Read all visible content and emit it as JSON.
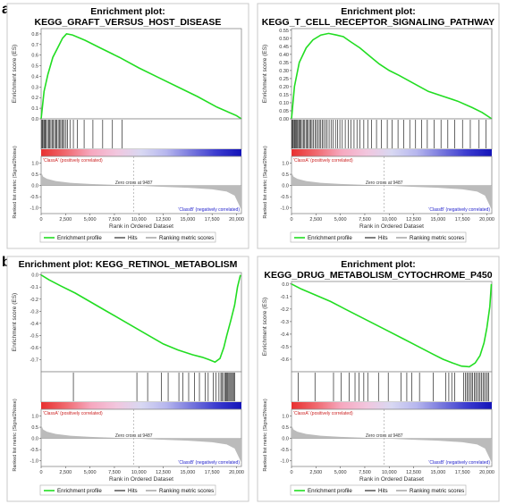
{
  "panel_labels": [
    "a",
    "b"
  ],
  "colors": {
    "es_curve": "#22dd22",
    "hits": "#000000",
    "metric_fill": "#bbbbbb",
    "classA_text": "#cc2222",
    "classB_text": "#2222cc",
    "heat_gradient": [
      "#e83030",
      "#f06a70",
      "#f6a8bf",
      "#f2c6de",
      "#d8d8f2",
      "#b6b6ee",
      "#7777dd",
      "#3b3bcf",
      "#1414b8"
    ]
  },
  "legend": {
    "enrichment_profile": "Enrichment profile",
    "hits": "Hits",
    "ranking_metric": "Ranking metric scores"
  },
  "labels": {
    "es_ylabel": "Enrichment score (ES)",
    "metric_ylabel": "Ranked list metric (Signal2Noise)",
    "xlabel": "Rank in Ordered Dataset",
    "classA": "'ClassA' (positively correlated)",
    "classB": "'ClassB' (negatively correlated)",
    "zero_cross": "Zero cross at 9487"
  },
  "chart_data": [
    {
      "type": "line",
      "panel": "a",
      "title": "Enrichment plot:\nKEGG_GRAFT_VERSUS_HOST_DISEASE",
      "xlim": [
        0,
        20500
      ],
      "xticks": [
        0,
        2500,
        5000,
        7500,
        10000,
        12500,
        15000,
        17500,
        20000
      ],
      "xtick_labels": [
        "0",
        "2,500",
        "5,000",
        "7,500",
        "10,000",
        "12,500",
        "15,000",
        "17,500",
        "20,000"
      ],
      "es_ylim": [
        0,
        0.85
      ],
      "es_yticks": [
        0.0,
        0.1,
        0.2,
        0.3,
        0.4,
        0.5,
        0.6,
        0.7,
        0.8
      ],
      "es_ytick_labels": [
        "0.0",
        "0.1",
        "0.2",
        "0.3",
        "0.4",
        "0.5",
        "0.6",
        "0.7",
        "0.8"
      ],
      "es_curve": {
        "x": [
          0,
          300,
          700,
          1200,
          1700,
          2200,
          2600,
          3200,
          4500,
          6000,
          8000,
          10000,
          12000,
          14000,
          16000,
          18000,
          20000,
          20500
        ],
        "y": [
          0.0,
          0.26,
          0.42,
          0.58,
          0.67,
          0.76,
          0.8,
          0.79,
          0.74,
          0.67,
          0.58,
          0.48,
          0.39,
          0.3,
          0.21,
          0.11,
          0.03,
          0.0
        ]
      },
      "hits": [
        80,
        150,
        260,
        350,
        420,
        520,
        650,
        780,
        880,
        1000,
        1120,
        1250,
        1380,
        1500,
        1620,
        1750,
        1880,
        2000,
        2120,
        2250,
        2380,
        2550,
        2700,
        2950,
        3300,
        3700,
        4400,
        5300,
        6300,
        7300,
        8300
      ],
      "zero_cross": 9487,
      "metric_ylim": [
        -1.25,
        1.3
      ],
      "metric_yticks": [
        1.0,
        0.5,
        0.0,
        -0.5,
        -1.0
      ],
      "metric_ytick_labels": [
        "1.0",
        "0.5",
        "0.0",
        "-0.5",
        "-1.0"
      ],
      "metric_curve": {
        "x": [
          0,
          200,
          600,
          1500,
          3000,
          5000,
          7500,
          9487,
          12000,
          15000,
          17500,
          19000,
          19800,
          20300,
          20500
        ],
        "y": [
          0.6,
          0.4,
          0.3,
          0.2,
          0.12,
          0.07,
          0.03,
          0.0,
          -0.05,
          -0.1,
          -0.17,
          -0.27,
          -0.45,
          -0.9,
          -1.1
        ]
      }
    },
    {
      "type": "line",
      "panel": "a",
      "title": "Enrichment plot:\nKEGG_T_CELL_RECEPTOR_SIGNALING_PATHWAY",
      "xlim": [
        0,
        20500
      ],
      "xticks": [
        0,
        2500,
        5000,
        7500,
        10000,
        12500,
        15000,
        17500,
        20000
      ],
      "xtick_labels": [
        "0",
        "2,500",
        "5,000",
        "7,500",
        "10,000",
        "12,500",
        "15,000",
        "17,500",
        "20,000"
      ],
      "es_ylim": [
        0,
        0.56
      ],
      "es_yticks": [
        0.0,
        0.05,
        0.1,
        0.15,
        0.2,
        0.25,
        0.3,
        0.35,
        0.4,
        0.45,
        0.5,
        0.55
      ],
      "es_ytick_labels": [
        "0.00",
        "0.05",
        "0.10",
        "0.15",
        "0.20",
        "0.25",
        "0.30",
        "0.35",
        "0.40",
        "0.45",
        "0.50",
        "0.55"
      ],
      "es_curve": {
        "x": [
          0,
          300,
          800,
          1500,
          2200,
          3000,
          3800,
          4600,
          5300,
          6000,
          7000,
          8000,
          9000,
          10000,
          11000,
          12500,
          14000,
          15500,
          17000,
          18500,
          19500,
          20500
        ],
        "y": [
          0.0,
          0.2,
          0.35,
          0.44,
          0.49,
          0.52,
          0.53,
          0.52,
          0.51,
          0.48,
          0.44,
          0.39,
          0.34,
          0.3,
          0.27,
          0.22,
          0.17,
          0.14,
          0.11,
          0.07,
          0.04,
          0.0
        ]
      },
      "hits": [
        60,
        130,
        200,
        300,
        380,
        470,
        560,
        650,
        760,
        860,
        980,
        1100,
        1220,
        1350,
        1480,
        1600,
        1720,
        1850,
        1980,
        2100,
        2250,
        2400,
        2550,
        2700,
        2850,
        3000,
        3150,
        3300,
        3480,
        3650,
        3850,
        4050,
        4250,
        4500,
        4700,
        4950,
        5200,
        5500,
        5800,
        6100,
        6400,
        6700,
        7000,
        7400,
        7800,
        8200,
        8700,
        9200,
        9800,
        10300,
        10900,
        11500,
        12100,
        12700,
        13300,
        13900,
        14600,
        15300,
        16000,
        16700,
        17500,
        18300,
        19200,
        19900
      ],
      "zero_cross": 9487,
      "metric_ylim": [
        -1.25,
        1.3
      ],
      "metric_yticks": [
        1.0,
        0.5,
        0.0,
        -0.5,
        -1.0
      ],
      "metric_ytick_labels": [
        "1.0",
        "0.5",
        "0.0",
        "-0.5",
        "-1.0"
      ],
      "metric_curve": {
        "x": [
          0,
          200,
          600,
          1500,
          3000,
          5000,
          7500,
          9487,
          12000,
          15000,
          17500,
          19000,
          19800,
          20300,
          20500
        ],
        "y": [
          0.6,
          0.4,
          0.3,
          0.2,
          0.12,
          0.07,
          0.03,
          0.0,
          -0.05,
          -0.1,
          -0.17,
          -0.27,
          -0.45,
          -0.9,
          -1.1
        ]
      }
    },
    {
      "type": "line",
      "panel": "b",
      "title": "Enrichment plot: KEGG_RETINOL_METABOLISM",
      "xlim": [
        0,
        20500
      ],
      "xticks": [
        0,
        2500,
        5000,
        7500,
        10000,
        12500,
        15000,
        17500,
        20000
      ],
      "xtick_labels": [
        "0",
        "2,500",
        "5,000",
        "7,500",
        "10,000",
        "12,500",
        "15,000",
        "17,500",
        "20,000"
      ],
      "es_ylim": [
        -0.8,
        0.02
      ],
      "es_yticks": [
        0.0,
        -0.1,
        -0.2,
        -0.3,
        -0.4,
        -0.5,
        -0.6,
        -0.7
      ],
      "es_ytick_labels": [
        "0.0",
        "-0.1",
        "-0.2",
        "-0.3",
        "-0.4",
        "-0.5",
        "-0.6",
        "-0.7"
      ],
      "es_curve": {
        "x": [
          0,
          800,
          2000,
          3500,
          5000,
          6500,
          8000,
          9500,
          11000,
          12500,
          14000,
          15500,
          16500,
          17200,
          17800,
          18300,
          18700,
          19000,
          19400,
          19800,
          20100,
          20400
        ],
        "y": [
          0.0,
          -0.04,
          -0.09,
          -0.15,
          -0.22,
          -0.29,
          -0.36,
          -0.43,
          -0.5,
          -0.57,
          -0.62,
          -0.66,
          -0.68,
          -0.7,
          -0.72,
          -0.69,
          -0.6,
          -0.5,
          -0.38,
          -0.25,
          -0.1,
          0.0
        ]
      },
      "hits": [
        3300,
        9800,
        10900,
        12300,
        13000,
        14100,
        14500,
        15100,
        15700,
        16200,
        16800,
        17100,
        17600,
        17900,
        18200,
        18400,
        18500,
        18650,
        18800,
        18900,
        19000,
        19100,
        19200,
        19300,
        19400,
        19500,
        19600,
        19700,
        19800
      ],
      "zero_cross": 9487,
      "metric_ylim": [
        -1.25,
        1.3
      ],
      "metric_yticks": [
        1.0,
        0.5,
        0.0,
        -0.5,
        -1.0
      ],
      "metric_ytick_labels": [
        "1.0",
        "0.5",
        "0.0",
        "-0.5",
        "-1.0"
      ],
      "metric_curve": {
        "x": [
          0,
          200,
          600,
          1500,
          3000,
          5000,
          7500,
          9487,
          12000,
          15000,
          17500,
          19000,
          19800,
          20300,
          20500
        ],
        "y": [
          0.6,
          0.4,
          0.3,
          0.2,
          0.12,
          0.07,
          0.03,
          0.0,
          -0.05,
          -0.1,
          -0.17,
          -0.27,
          -0.45,
          -0.9,
          -1.1
        ]
      }
    },
    {
      "type": "line",
      "panel": "b",
      "title": "Enrichment plot:\nKEGG_DRUG_METABOLISM_CYTOCHROME_P450",
      "xlim": [
        0,
        20500
      ],
      "xticks": [
        0,
        2500,
        5000,
        7500,
        10000,
        12500,
        15000,
        17500,
        20000
      ],
      "xtick_labels": [
        "0",
        "2,500",
        "5,000",
        "7,500",
        "10,000",
        "12,500",
        "15,000",
        "17,500",
        "20,000"
      ],
      "es_ylim": [
        -0.7,
        0.02
      ],
      "es_yticks": [
        0.0,
        -0.1,
        -0.2,
        -0.3,
        -0.4,
        -0.5,
        -0.6
      ],
      "es_ytick_labels": [
        "0.0",
        "-0.1",
        "-0.2",
        "-0.3",
        "-0.4",
        "-0.5",
        "-0.6"
      ],
      "es_curve": {
        "x": [
          0,
          1000,
          2500,
          4000,
          5500,
          7000,
          8500,
          10000,
          11500,
          13000,
          14500,
          15500,
          16500,
          17400,
          18200,
          18800,
          19300,
          19700,
          20000,
          20300,
          20450
        ],
        "y": [
          0.0,
          -0.04,
          -0.09,
          -0.14,
          -0.2,
          -0.26,
          -0.32,
          -0.38,
          -0.44,
          -0.5,
          -0.56,
          -0.6,
          -0.63,
          -0.655,
          -0.66,
          -0.63,
          -0.57,
          -0.47,
          -0.35,
          -0.18,
          0.0
        ]
      },
      "hits": [
        700,
        2400,
        4300,
        5100,
        5900,
        6500,
        6900,
        7400,
        7800,
        8900,
        9900,
        11200,
        11800,
        12300,
        13100,
        14500,
        15800,
        16100,
        16400,
        16700,
        17600,
        17800,
        17950,
        18100,
        18250,
        18400,
        18550,
        18700,
        18850,
        19000,
        19150,
        19300,
        19450,
        19600,
        19750,
        19900,
        20050,
        20200
      ],
      "zero_cross": 9487,
      "metric_ylim": [
        -1.25,
        1.3
      ],
      "metric_yticks": [
        1.0,
        0.5,
        0.0,
        -0.5,
        -1.0
      ],
      "metric_ytick_labels": [
        "1.0",
        "0.5",
        "0.0",
        "-0.5",
        "-1.0"
      ],
      "metric_curve": {
        "x": [
          0,
          200,
          600,
          1500,
          3000,
          5000,
          7500,
          9487,
          12000,
          15000,
          17500,
          19000,
          19800,
          20300,
          20500
        ],
        "y": [
          0.6,
          0.4,
          0.3,
          0.2,
          0.12,
          0.07,
          0.03,
          0.0,
          -0.05,
          -0.1,
          -0.17,
          -0.27,
          -0.45,
          -0.9,
          -1.1
        ]
      }
    }
  ]
}
